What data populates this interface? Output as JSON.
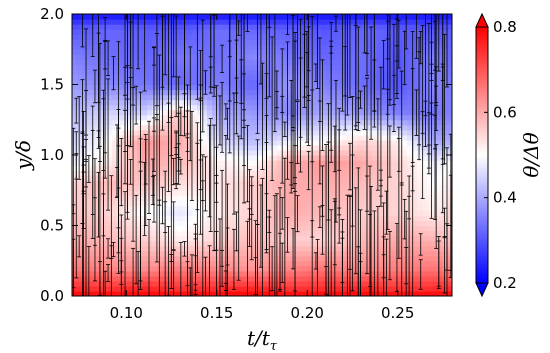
{
  "chart_data": {
    "type": "heatmap",
    "title": "",
    "xlabel": "t/t",
    "xlabel_sub": "τ",
    "ylabel": "y/δ",
    "xlim": [
      0.07,
      0.28
    ],
    "ylim": [
      0.0,
      2.0
    ],
    "x_ticks": [
      0.1,
      0.15,
      0.2,
      0.25
    ],
    "x_tick_labels": [
      "0.10",
      "0.15",
      "0.20",
      "0.25"
    ],
    "y_ticks": [
      0.0,
      0.5,
      1.0,
      1.5,
      2.0
    ],
    "y_tick_labels": [
      "0.0",
      "0.5",
      "1.0",
      "1.5",
      "2.0"
    ],
    "colorbar": {
      "label": "θ/Δθ",
      "min": 0.2,
      "max": 0.8,
      "ticks": [
        0.2,
        0.4,
        0.6,
        0.8
      ],
      "tick_labels": [
        "0.2",
        "0.4",
        "0.6",
        "0.8"
      ],
      "colormap": "bwr",
      "extend": "both",
      "colors": {
        "low": "#0000ff",
        "mid": "#ffffff",
        "high": "#ff0000"
      }
    },
    "x": [
      0.07,
      0.09,
      0.11,
      0.13,
      0.15,
      0.17,
      0.19,
      0.21,
      0.23,
      0.25,
      0.27,
      0.28
    ],
    "y": [
      0.0,
      0.05,
      0.2,
      0.4,
      0.6,
      0.8,
      0.95,
      1.1,
      1.3,
      1.5,
      1.7,
      1.9,
      2.0
    ],
    "z": [
      [
        0.8,
        0.8,
        0.8,
        0.8,
        0.8,
        0.8,
        0.8,
        0.8,
        0.8,
        0.8,
        0.8,
        0.8
      ],
      [
        0.75,
        0.74,
        0.76,
        0.74,
        0.75,
        0.76,
        0.74,
        0.75,
        0.76,
        0.74,
        0.75,
        0.75
      ],
      [
        0.66,
        0.64,
        0.63,
        0.65,
        0.64,
        0.62,
        0.64,
        0.66,
        0.63,
        0.65,
        0.66,
        0.64
      ],
      [
        0.6,
        0.58,
        0.56,
        0.52,
        0.55,
        0.58,
        0.56,
        0.55,
        0.58,
        0.6,
        0.59,
        0.57
      ],
      [
        0.57,
        0.55,
        0.5,
        0.47,
        0.52,
        0.55,
        0.6,
        0.58,
        0.56,
        0.55,
        0.52,
        0.55
      ],
      [
        0.55,
        0.58,
        0.57,
        0.54,
        0.53,
        0.56,
        0.6,
        0.6,
        0.58,
        0.55,
        0.5,
        0.52
      ],
      [
        0.48,
        0.52,
        0.6,
        0.58,
        0.52,
        0.5,
        0.6,
        0.62,
        0.6,
        0.55,
        0.48,
        0.5
      ],
      [
        0.45,
        0.5,
        0.62,
        0.6,
        0.46,
        0.42,
        0.48,
        0.5,
        0.55,
        0.52,
        0.4,
        0.4
      ],
      [
        0.42,
        0.45,
        0.44,
        0.58,
        0.4,
        0.38,
        0.36,
        0.4,
        0.38,
        0.35,
        0.34,
        0.35
      ],
      [
        0.38,
        0.36,
        0.34,
        0.32,
        0.35,
        0.32,
        0.38,
        0.35,
        0.33,
        0.3,
        0.36,
        0.34
      ],
      [
        0.35,
        0.33,
        0.32,
        0.34,
        0.33,
        0.36,
        0.34,
        0.32,
        0.33,
        0.3,
        0.35,
        0.32
      ],
      [
        0.3,
        0.32,
        0.31,
        0.3,
        0.33,
        0.32,
        0.31,
        0.3,
        0.32,
        0.31,
        0.3,
        0.31
      ],
      [
        0.22,
        0.22,
        0.22,
        0.22,
        0.22,
        0.22,
        0.22,
        0.22,
        0.22,
        0.22,
        0.22,
        0.22
      ]
    ],
    "error_bars": {
      "color": "#000000",
      "time_count": 140,
      "error_half_height_range": [
        0.05,
        0.55
      ]
    },
    "grid": false,
    "legend": "none"
  }
}
